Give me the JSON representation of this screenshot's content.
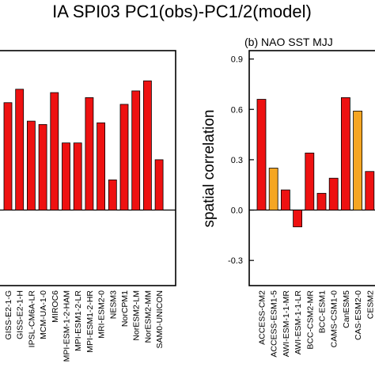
{
  "figure": {
    "suptitle": "IA SPI03 PC1(obs)-PC1/2(model)",
    "ylabel": "spatial correlation"
  },
  "colors": {
    "pc1": "#ee1111",
    "pc2": "#f5a623",
    "edge": "#000000"
  },
  "chart_data": [
    {
      "type": "bar",
      "panel": "left (cropped)",
      "title": "",
      "ylabel": "",
      "ylim": [
        -0.45,
        0.95
      ],
      "categories": [
        "GISS-E2-1-G",
        "GISS-E2-1-H",
        "IPSL-CM6A-LR",
        "MCM-UA-1-0",
        "MIROC6",
        "MPI-ESM-1-2-HAM",
        "MPI-ESM1-2-LR",
        "MPI-ESM1-2-HR",
        "MRI-ESM2-0",
        "NESM3",
        "NorCPM1",
        "NorESM2-LM",
        "NorESM2-MM",
        "SAM0-UNICON"
      ],
      "series": [
        {
          "values": [
            0.64,
            0.72,
            0.53,
            0.51,
            0.7,
            0.4,
            0.4,
            0.67,
            0.52,
            0.18,
            0.63,
            0.71,
            0.77,
            0.3
          ],
          "colors": [
            "pc1",
            "pc1",
            "pc1",
            "pc1",
            "pc1",
            "pc1",
            "pc1",
            "pc1",
            "pc1",
            "pc1",
            "pc1",
            "pc1",
            "pc1",
            "pc1"
          ]
        }
      ]
    },
    {
      "type": "bar",
      "panel": "right",
      "title": "(b) NAO SST MJJ",
      "ylabel": "spatial correlation",
      "ylim": [
        -0.45,
        0.95
      ],
      "yticks": [
        -0.3,
        0.0,
        0.3,
        0.6,
        0.9
      ],
      "ytick_labels": [
        "-0.3",
        "0.0",
        "0.3",
        "0.6",
        "0.9"
      ],
      "categories": [
        "ACCESS-CM2",
        "ACCESS-ESM1-5",
        "AWI-ESM-1-1-MR",
        "AWI-ESM-1-1-LR",
        "BCC-CSM2-MR",
        "BCC-ESM1",
        "CAMS-CSM1-0",
        "CanESM5",
        "CAS-ESM2-0",
        "CESM2"
      ],
      "series": [
        {
          "values": [
            0.66,
            0.25,
            0.12,
            -0.1,
            0.34,
            0.1,
            0.19,
            0.67,
            0.59,
            0.23
          ],
          "colors": [
            "pc1",
            "pc2",
            "pc1",
            "pc1",
            "pc1",
            "pc1",
            "pc1",
            "pc1",
            "pc2",
            "pc1"
          ]
        }
      ]
    }
  ]
}
